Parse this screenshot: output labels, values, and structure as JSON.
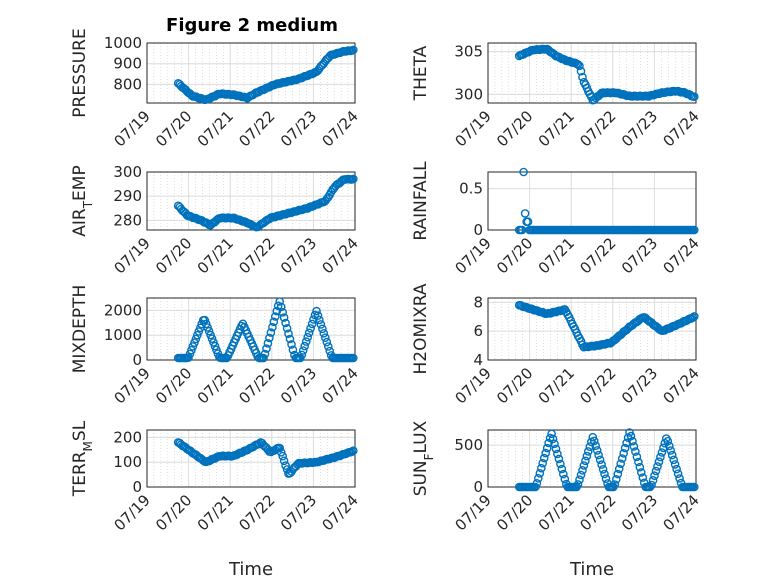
{
  "figure_title": "Figure 2 medium",
  "colors": {
    "marker": "#0072BD",
    "axis": "#262626",
    "grid": "#dcdcdc",
    "minor_grid": "#c8c8c8",
    "background": "#ffffff"
  },
  "chart_data": [
    {
      "type": "scatter",
      "marker": "open-circle",
      "title": "Figure 2 medium",
      "ylabel": "PRESSURE",
      "xlabel": "",
      "grid": true,
      "minor_grid": true,
      "xlim": [
        "07/19",
        "07/24"
      ],
      "xticks": [
        "07/19",
        "07/20",
        "07/21",
        "07/22",
        "07/23",
        "07/24"
      ],
      "ylim": [
        710,
        1000
      ],
      "yticks": [
        800,
        900,
        1000
      ],
      "x_start": "07/19 18:00",
      "x_end": "07/23 23:00",
      "anchors": [
        [
          0,
          805
        ],
        [
          0.05,
          785
        ],
        [
          0.15,
          745
        ],
        [
          0.3,
          725
        ],
        [
          0.45,
          755
        ],
        [
          0.6,
          750
        ],
        [
          0.75,
          735
        ],
        [
          0.85,
          760
        ],
        [
          1.05,
          800
        ],
        [
          1.3,
          825
        ],
        [
          1.5,
          860
        ],
        [
          1.65,
          940
        ],
        [
          1.8,
          960
        ],
        [
          1.9,
          965
        ]
      ]
    },
    {
      "type": "scatter",
      "marker": "open-circle",
      "ylabel": "THETA",
      "xlabel": "",
      "grid": true,
      "minor_grid": true,
      "xlim": [
        "07/19",
        "07/24"
      ],
      "xticks": [
        "07/19",
        "07/20",
        "07/21",
        "07/22",
        "07/23",
        "07/24"
      ],
      "ylim": [
        299,
        306
      ],
      "yticks": [
        300,
        305
      ],
      "x_start": "07/19 18:00",
      "x_end": "07/23 23:00",
      "anchors": [
        [
          0,
          304.5
        ],
        [
          0.15,
          305.2
        ],
        [
          0.3,
          305.3
        ],
        [
          0.4,
          304.5
        ],
        [
          0.5,
          304
        ],
        [
          0.65,
          303.5
        ],
        [
          0.7,
          301.5
        ],
        [
          0.8,
          299.3
        ],
        [
          0.9,
          300.2
        ],
        [
          1.05,
          300.2
        ],
        [
          1.2,
          299.8
        ],
        [
          1.4,
          299.8
        ],
        [
          1.55,
          300.2
        ],
        [
          1.7,
          300.4
        ],
        [
          1.8,
          300.2
        ],
        [
          1.9,
          299.7
        ]
      ]
    },
    {
      "type": "scatter",
      "marker": "open-circle",
      "ylabel": "AIR_TEMP",
      "xlabel": "",
      "grid": true,
      "minor_grid": true,
      "xlim": [
        "07/19",
        "07/24"
      ],
      "xticks": [
        "07/19",
        "07/20",
        "07/21",
        "07/22",
        "07/23",
        "07/24"
      ],
      "ylim": [
        276,
        300
      ],
      "yticks": [
        280,
        290,
        300
      ],
      "x_start": "07/19 18:00",
      "x_end": "07/23 23:00",
      "anchors": [
        [
          0,
          286
        ],
        [
          0.1,
          282
        ],
        [
          0.25,
          280
        ],
        [
          0.35,
          278
        ],
        [
          0.45,
          281
        ],
        [
          0.6,
          281
        ],
        [
          0.75,
          279
        ],
        [
          0.85,
          277
        ],
        [
          1.0,
          281
        ],
        [
          1.2,
          283
        ],
        [
          1.4,
          285
        ],
        [
          1.6,
          288
        ],
        [
          1.7,
          294
        ],
        [
          1.8,
          297
        ],
        [
          1.9,
          297
        ]
      ]
    },
    {
      "type": "scatter",
      "marker": "open-circle",
      "ylabel": "RAINFALL",
      "xlabel": "",
      "grid": true,
      "minor_grid": false,
      "xlim": [
        "07/19",
        "07/24"
      ],
      "xticks": [
        "07/19",
        "07/20",
        "07/21",
        "07/22",
        "07/23",
        "07/24"
      ],
      "ylim": [
        0,
        0.7
      ],
      "yticks": [
        0,
        0.5
      ],
      "x_start": "07/19 18:00",
      "x_end": "07/23 23:00",
      "spikes": [
        [
          0.05,
          0.7
        ],
        [
          0.07,
          0.2
        ],
        [
          0.09,
          0.1
        ]
      ]
    },
    {
      "type": "scatter",
      "marker": "open-circle",
      "ylabel": "MIXDEPTH",
      "xlabel": "",
      "grid": true,
      "minor_grid": true,
      "xlim": [
        "07/19",
        "07/24"
      ],
      "xticks": [
        "07/19",
        "07/20",
        "07/21",
        "07/22",
        "07/23",
        "07/24"
      ],
      "ylim": [
        0,
        2500
      ],
      "yticks": [
        0,
        1000,
        2000
      ],
      "x_start": "07/19 18:00",
      "x_end": "07/23 23:00",
      "peaks": [
        [
          0.28,
          1600
        ],
        [
          0.7,
          1400
        ],
        [
          1.1,
          2300
        ],
        [
          1.5,
          1900
        ]
      ]
    },
    {
      "type": "scatter",
      "marker": "open-circle",
      "ylabel": "H2OMIXRA",
      "xlabel": "",
      "grid": true,
      "minor_grid": true,
      "xlim": [
        "07/19",
        "07/24"
      ],
      "xticks": [
        "07/19",
        "07/20",
        "07/21",
        "07/22",
        "07/23",
        "07/24"
      ],
      "ylim": [
        4,
        8.3
      ],
      "yticks": [
        4,
        6,
        8
      ],
      "x_start": "07/19 18:00",
      "x_end": "07/23 23:00",
      "anchors": [
        [
          0,
          7.8
        ],
        [
          0.1,
          7.6
        ],
        [
          0.3,
          7.2
        ],
        [
          0.5,
          7.5
        ],
        [
          0.6,
          6.2
        ],
        [
          0.7,
          4.9
        ],
        [
          0.85,
          5.0
        ],
        [
          1.0,
          5.2
        ],
        [
          1.2,
          6.3
        ],
        [
          1.35,
          7.0
        ],
        [
          1.55,
          6.0
        ],
        [
          1.7,
          6.4
        ],
        [
          1.9,
          7.0
        ]
      ]
    },
    {
      "type": "scatter",
      "marker": "open-circle",
      "ylabel": "TERR_MSL",
      "xlabel": "Time",
      "grid": true,
      "minor_grid": true,
      "xlim": [
        "07/19",
        "07/24"
      ],
      "xticks": [
        "07/19",
        "07/20",
        "07/21",
        "07/22",
        "07/23",
        "07/24"
      ],
      "ylim": [
        0,
        230
      ],
      "yticks": [
        0,
        100,
        200
      ],
      "x_start": "07/19 18:00",
      "x_end": "07/23 23:00",
      "anchors": [
        [
          0,
          180
        ],
        [
          0.15,
          140
        ],
        [
          0.3,
          100
        ],
        [
          0.45,
          125
        ],
        [
          0.6,
          125
        ],
        [
          0.75,
          150
        ],
        [
          0.9,
          180
        ],
        [
          1.0,
          140
        ],
        [
          1.1,
          160
        ],
        [
          1.2,
          50
        ],
        [
          1.3,
          95
        ],
        [
          1.5,
          100
        ],
        [
          1.7,
          120
        ],
        [
          1.9,
          145
        ]
      ]
    },
    {
      "type": "scatter",
      "marker": "open-circle",
      "ylabel": "SUN_FLUX",
      "xlabel": "Time",
      "grid": true,
      "minor_grid": true,
      "xlim": [
        "07/19",
        "07/24"
      ],
      "xticks": [
        "07/19",
        "07/20",
        "07/21",
        "07/22",
        "07/23",
        "07/24"
      ],
      "ylim": [
        0,
        680
      ],
      "yticks": [
        0,
        500
      ],
      "x_start": "07/19 18:00",
      "x_end": "07/23 23:00",
      "peaks": [
        [
          0.35,
          640
        ],
        [
          0.8,
          600
        ],
        [
          1.2,
          660
        ],
        [
          1.6,
          590
        ]
      ]
    }
  ]
}
